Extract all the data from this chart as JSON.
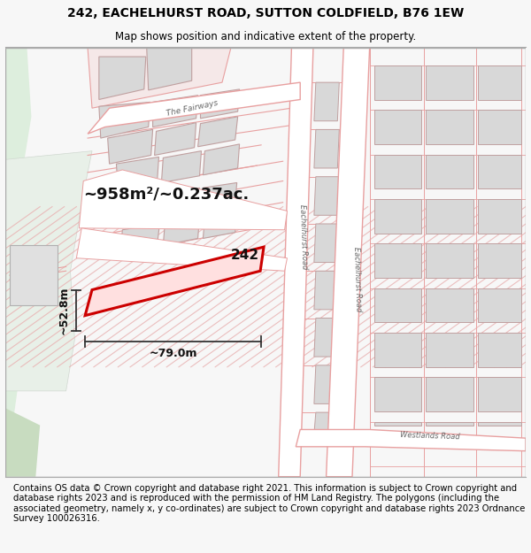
{
  "title_line1": "242, EACHELHURST ROAD, SUTTON COLDFIELD, B76 1EW",
  "title_line2": "Map shows position and indicative extent of the property.",
  "footer_text": "Contains OS data © Crown copyright and database right 2021. This information is subject to Crown copyright and database rights 2023 and is reproduced with the permission of HM Land Registry. The polygons (including the associated geometry, namely x, y co-ordinates) are subject to Crown copyright and database rights 2023 Ordnance Survey 100026316.",
  "area_label": "~958m²/~0.237ac.",
  "number_label": "242",
  "width_label": "~79.0m",
  "height_label": "~52.8m",
  "road_label_fairways": "The Fairways",
  "road_label_each1": "Eachelhurst Road",
  "road_label_each2": "Eachelhurst Road",
  "road_label_west": "Westlands Road",
  "bg_color": "#f7f7f7",
  "map_bg": "#ffffff",
  "green_color": "#ddeedd",
  "pink_line": "#e8a0a0",
  "pink_fill": "#f5e8e8",
  "gray_fill": "#d8d8d8",
  "gray_edge": "#c0a0a0",
  "red_color": "#cc0000",
  "dim_color": "#444444",
  "road_color": "#aaaaaa",
  "title_fontsize": 10,
  "subtitle_fontsize": 8.5,
  "footer_fontsize": 7.2
}
